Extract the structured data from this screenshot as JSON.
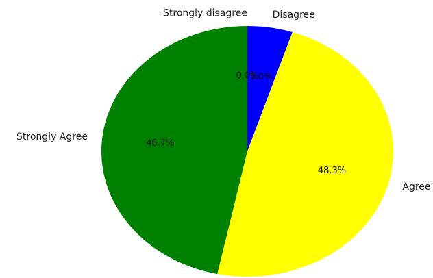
{
  "chart_data": {
    "type": "pie",
    "title": "",
    "start_angle_deg": 90,
    "direction": "clockwise",
    "slices": [
      {
        "label": "Strongly disagree",
        "value": 0.0,
        "pct_text": "0.0%",
        "color": "#ff0000"
      },
      {
        "label": "Disagree",
        "value": 5.0,
        "pct_text": "5.0%",
        "color": "#0000ff"
      },
      {
        "label": "Agree",
        "value": 48.3,
        "pct_text": "48.3%",
        "color": "#ffff00"
      },
      {
        "label": "Strongly Agree",
        "value": 46.7,
        "pct_text": "46.7%",
        "color": "#008000"
      }
    ]
  }
}
